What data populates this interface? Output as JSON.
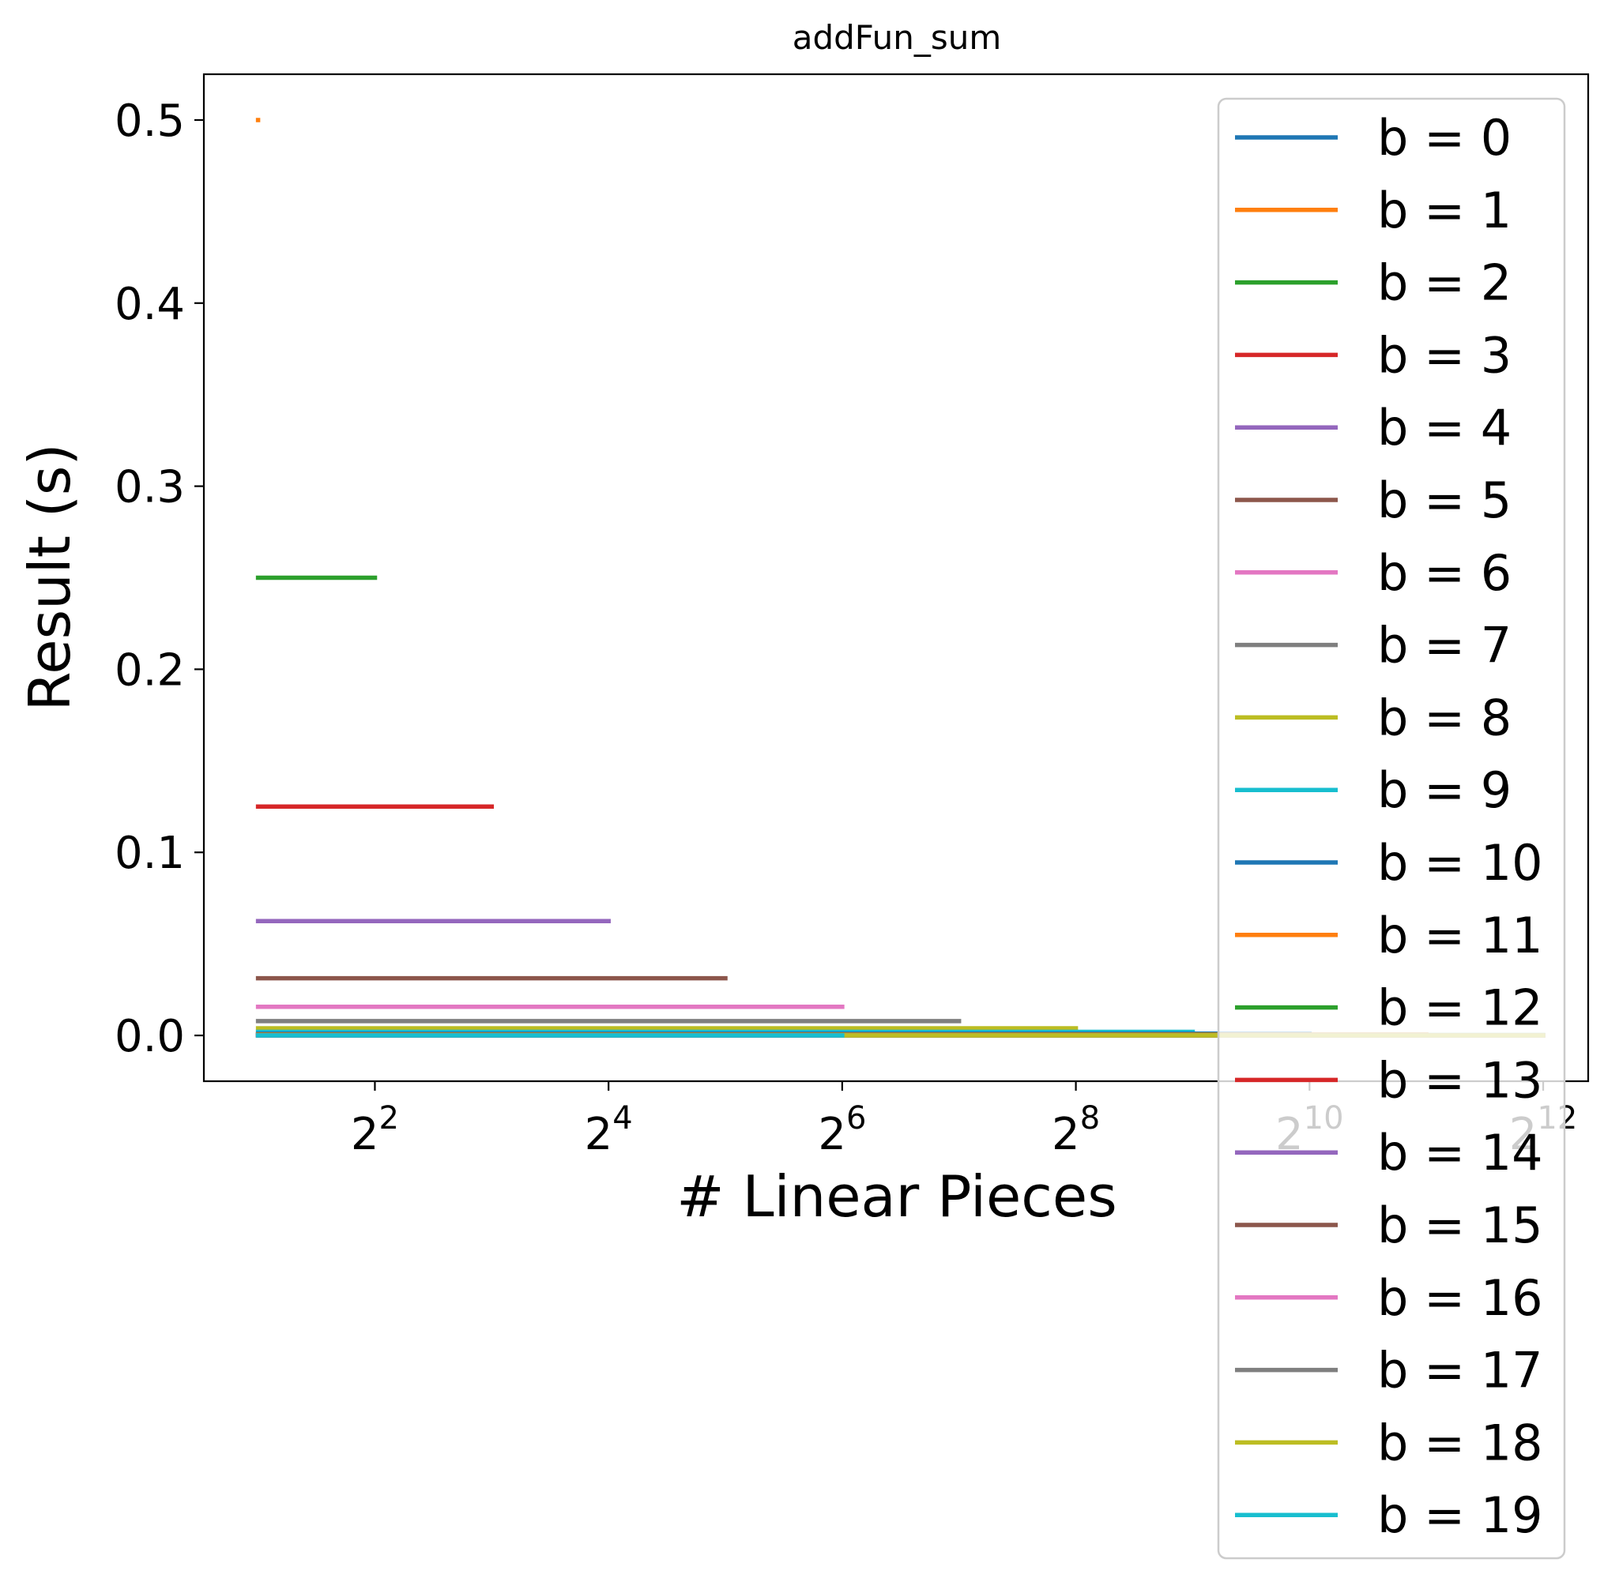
{
  "chart_data": {
    "type": "line",
    "title": "addFun_sum",
    "xlabel": "# Linear Pieces",
    "ylabel": "Result (s)",
    "xscale": "log2",
    "xlim": [
      1.45,
      5350
    ],
    "ylim": [
      -0.025,
      0.525
    ],
    "xticks": [
      {
        "value": 4,
        "base": "2",
        "exp": "2"
      },
      {
        "value": 16,
        "base": "2",
        "exp": "4"
      },
      {
        "value": 64,
        "base": "2",
        "exp": "6"
      },
      {
        "value": 256,
        "base": "2",
        "exp": "8"
      },
      {
        "value": 1024,
        "base": "2",
        "exp": "10"
      },
      {
        "value": 4096,
        "base": "2",
        "exp": "12"
      }
    ],
    "yticks": [
      {
        "value": 0.0,
        "label": "0.0"
      },
      {
        "value": 0.1,
        "label": "0.1"
      },
      {
        "value": 0.2,
        "label": "0.2"
      },
      {
        "value": 0.3,
        "label": "0.3"
      },
      {
        "value": 0.4,
        "label": "0.4"
      },
      {
        "value": 0.5,
        "label": "0.5"
      }
    ],
    "legend_position": "upper right",
    "grid": false,
    "series": [
      {
        "name": "b = 0",
        "color": "#1f77b4",
        "x": [
          2,
          4096
        ],
        "y": [
          0.0,
          0.0
        ]
      },
      {
        "name": "b = 1",
        "color": "#ff7f0e",
        "x": [
          2,
          2
        ],
        "y": [
          0.5,
          0.5
        ]
      },
      {
        "name": "b = 2",
        "color": "#2ca02c",
        "x": [
          2,
          4
        ],
        "y": [
          0.25,
          0.25
        ]
      },
      {
        "name": "b = 3",
        "color": "#d62728",
        "x": [
          2,
          8
        ],
        "y": [
          0.125,
          0.125
        ]
      },
      {
        "name": "b = 4",
        "color": "#9467bd",
        "x": [
          2,
          16
        ],
        "y": [
          0.0625,
          0.0625
        ]
      },
      {
        "name": "b = 5",
        "color": "#8c564b",
        "x": [
          2,
          32
        ],
        "y": [
          0.03125,
          0.03125
        ]
      },
      {
        "name": "b = 6",
        "color": "#e377c2",
        "x": [
          2,
          64
        ],
        "y": [
          0.015625,
          0.015625
        ]
      },
      {
        "name": "b = 7",
        "color": "#7f7f7f",
        "x": [
          2,
          128
        ],
        "y": [
          0.0078125,
          0.0078125
        ]
      },
      {
        "name": "b = 8",
        "color": "#bcbd22",
        "x": [
          2,
          256
        ],
        "y": [
          0.00390625,
          0.00390625
        ]
      },
      {
        "name": "b = 9",
        "color": "#17becf",
        "x": [
          2,
          512
        ],
        "y": [
          0.001953125,
          0.001953125
        ]
      },
      {
        "name": "b = 10",
        "color": "#1f77b4",
        "x": [
          2,
          1024
        ],
        "y": [
          0.0009765625,
          0.0009765625
        ]
      },
      {
        "name": "b = 11",
        "color": "#ff7f0e",
        "x": [
          2,
          2048
        ],
        "y": [
          0.00048828125,
          0.00048828125
        ]
      },
      {
        "name": "b = 12",
        "color": "#2ca02c",
        "x": [
          2,
          4096
        ],
        "y": [
          0.000244,
          0.000244
        ]
      },
      {
        "name": "b = 13",
        "color": "#d62728",
        "x": [
          2,
          4096
        ],
        "y": [
          0.000122,
          0.000122
        ]
      },
      {
        "name": "b = 14",
        "color": "#9467bd",
        "x": [
          2,
          4096
        ],
        "y": [
          6.1e-05,
          6.1e-05
        ]
      },
      {
        "name": "b = 15",
        "color": "#8c564b",
        "x": [
          2,
          4096
        ],
        "y": [
          3.1e-05,
          3.1e-05
        ]
      },
      {
        "name": "b = 16",
        "color": "#e377c2",
        "x": [
          2,
          4096
        ],
        "y": [
          1.5e-05,
          1.5e-05
        ]
      },
      {
        "name": "b = 17",
        "color": "#7f7f7f",
        "x": [
          2,
          4096
        ],
        "y": [
          7.6e-06,
          7.6e-06
        ]
      },
      {
        "name": "b = 18",
        "color": "#bcbd22",
        "x": [
          64,
          4096
        ],
        "y": [
          3.8e-06,
          3.8e-06
        ]
      },
      {
        "name": "b = 19",
        "color": "#17becf",
        "x": [
          2,
          64
        ],
        "y": [
          1.9e-06,
          1.9e-06
        ]
      }
    ]
  }
}
